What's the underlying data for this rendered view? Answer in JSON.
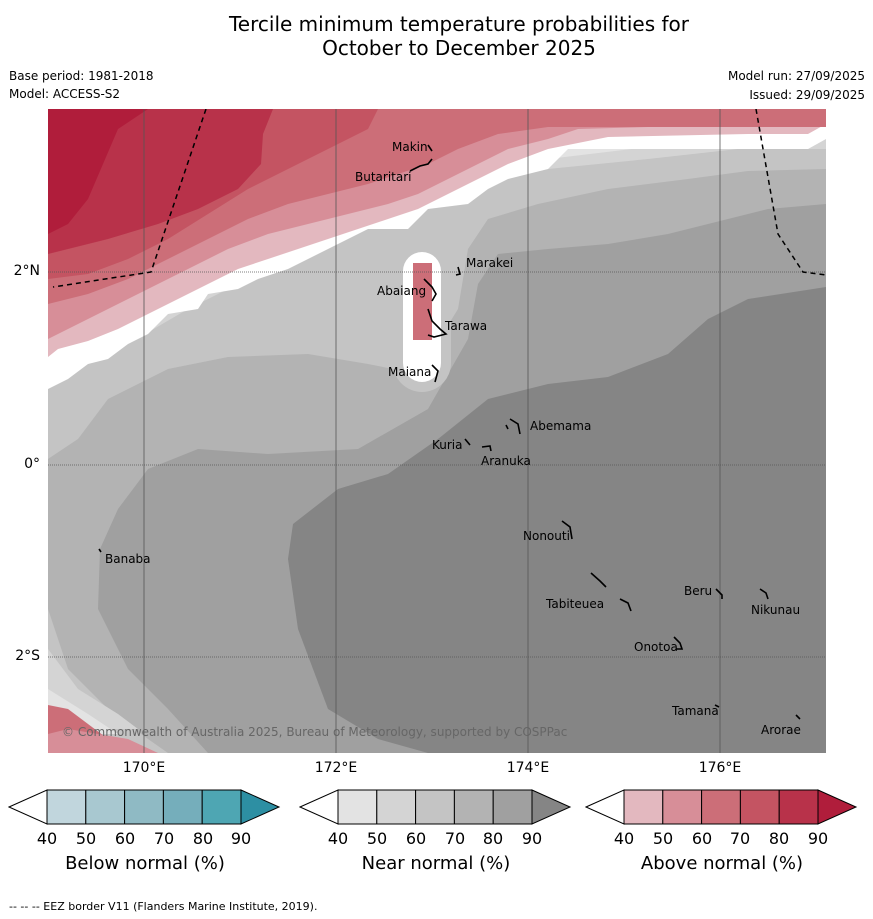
{
  "title": {
    "line1": "Tercile minimum temperature probabilities for",
    "line2": "October to December 2025"
  },
  "meta": {
    "base_period": "Base period: 1981-2018",
    "model": "Model: ACCESS-S2",
    "model_run": "Model run: 27/09/2025",
    "issued": "Issued: 29/09/2025"
  },
  "axes": {
    "lat_labels": [
      "2°N",
      "0°",
      "2°S"
    ],
    "lon_labels": [
      "170°E",
      "172°E",
      "174°E",
      "176°E"
    ]
  },
  "islands": [
    {
      "name": "Makin"
    },
    {
      "name": "Butaritari"
    },
    {
      "name": "Marakei"
    },
    {
      "name": "Abaiang"
    },
    {
      "name": "Tarawa"
    },
    {
      "name": "Maiana"
    },
    {
      "name": "Abemama"
    },
    {
      "name": "Kuria"
    },
    {
      "name": "Aranuka"
    },
    {
      "name": "Nonouti"
    },
    {
      "name": "Banaba"
    },
    {
      "name": "Beru"
    },
    {
      "name": "Nikunau"
    },
    {
      "name": "Tabiteuea"
    },
    {
      "name": "Onotoa"
    },
    {
      "name": "Tamana"
    },
    {
      "name": "Arorae"
    }
  ],
  "copyright": "© Commonwealth of Australia 2025, Bureau of Meteorology, supported by COSPPac",
  "colorbars": [
    {
      "title": "Below normal (%)",
      "ticks": [
        "40",
        "50",
        "60",
        "70",
        "80",
        "90"
      ],
      "colors": [
        "#c1d6dd",
        "#a8c8d0",
        "#8fbac4",
        "#75aebb",
        "#4ea6b3",
        "#2d8fa3"
      ]
    },
    {
      "title": "Near normal (%)",
      "ticks": [
        "40",
        "50",
        "60",
        "70",
        "80",
        "90"
      ],
      "colors": [
        "#e3e3e3",
        "#d4d4d4",
        "#c4c4c4",
        "#b3b3b3",
        "#a0a0a0",
        "#858585"
      ]
    },
    {
      "title": "Above normal (%)",
      "ticks": [
        "40",
        "50",
        "60",
        "70",
        "80",
        "90"
      ],
      "colors": [
        "#e3b8bf",
        "#d78e98",
        "#cc6e78",
        "#c45462",
        "#b8324a",
        "#b01d3b"
      ]
    }
  ],
  "footnote": "--  --  -- EEZ border V11 (Flanders Marine Institute, 2019)."
}
